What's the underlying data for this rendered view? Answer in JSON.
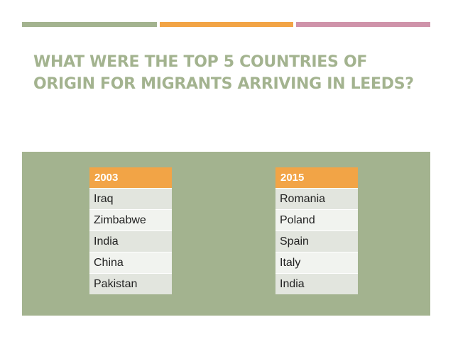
{
  "slide": {
    "title": "What were the top 5 countries of origin for migrants arriving in Leeds?"
  },
  "tables": [
    {
      "header": "2003",
      "rows": [
        "Iraq",
        "Zimbabwe",
        "India",
        "China",
        "Pakistan"
      ]
    },
    {
      "header": "2015",
      "rows": [
        "Romania",
        "Poland",
        "Spain",
        "Italy",
        "India"
      ]
    }
  ],
  "colors": {
    "green": "#a3b38f",
    "orange": "#f2a446",
    "pink": "#cf93aa",
    "row_light": "#f1f3ef",
    "row_dark": "#e2e5de"
  }
}
